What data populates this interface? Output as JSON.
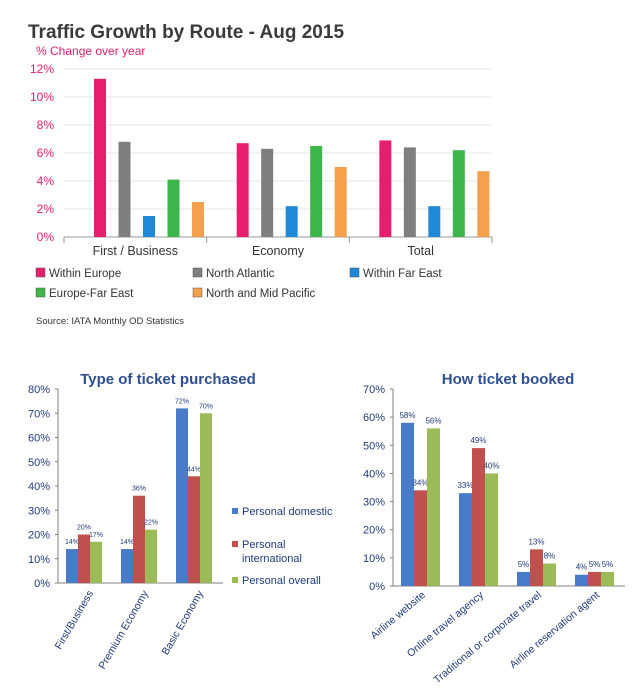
{
  "chart_data": [
    {
      "type": "bar",
      "title": "Traffic Growth by Route - Aug 2015",
      "subtitle": "% Change over year",
      "source": "Source: IATA Monthly OD Statistics",
      "categories": [
        "First / Business",
        "Economy",
        "Total"
      ],
      "yticks": [
        "0%",
        "2%",
        "4%",
        "6%",
        "8%",
        "10%",
        "12%"
      ],
      "ylim": [
        0,
        12
      ],
      "grid": true,
      "legend_position": "bottom",
      "series": [
        {
          "name": "Within Europe",
          "color": "#e61e6e",
          "values": [
            11.3,
            6.7,
            6.9
          ]
        },
        {
          "name": "North Atlantic",
          "color": "#7f7f7f",
          "values": [
            6.8,
            6.3,
            6.4
          ]
        },
        {
          "name": "Within Far East",
          "color": "#1f88d8",
          "values": [
            1.5,
            2.2,
            2.2
          ]
        },
        {
          "name": "Europe-Far East",
          "color": "#3cb54a",
          "values": [
            4.1,
            6.5,
            6.2
          ]
        },
        {
          "name": "North and Mid Pacific",
          "color": "#f5a04c",
          "values": [
            2.5,
            5.0,
            4.7
          ]
        }
      ]
    },
    {
      "type": "bar",
      "title": "Type of ticket purchased",
      "categories": [
        "First/Business",
        "Premium Economy",
        "Basic Economy"
      ],
      "yticks": [
        "0%",
        "10%",
        "20%",
        "30%",
        "40%",
        "50%",
        "60%",
        "70%",
        "80%"
      ],
      "ylim": [
        0,
        80
      ],
      "grid": false,
      "legend_position": "right",
      "series": [
        {
          "name": "Personal domestic",
          "color": "#4a7bc8",
          "values": [
            14,
            14,
            72
          ],
          "labels": [
            "14%",
            "14%",
            "72%"
          ]
        },
        {
          "name": "Personal international",
          "color": "#c0504d",
          "values": [
            20,
            36,
            44
          ],
          "labels": [
            "20%",
            "36%",
            "44%"
          ]
        },
        {
          "name": "Personal overall",
          "color": "#9bbb59",
          "values": [
            17,
            22,
            70
          ],
          "labels": [
            "17%",
            "22%",
            "70%"
          ]
        }
      ]
    },
    {
      "type": "bar",
      "title": "How ticket booked",
      "categories": [
        "Airline website",
        "Online travel agency",
        "Traditional or corporate travel",
        "Airline reservation agent"
      ],
      "yticks": [
        "0%",
        "10%",
        "20%",
        "30%",
        "40%",
        "50%",
        "60%",
        "70%"
      ],
      "ylim": [
        0,
        70
      ],
      "grid": false,
      "series": [
        {
          "values": [
            58,
            33,
            5,
            4
          ],
          "labels": [
            "58%",
            "33%",
            "5%",
            "4%"
          ],
          "color": "#4a7bc8"
        },
        {
          "values": [
            34,
            49,
            13,
            5
          ],
          "labels": [
            "34%",
            "49%",
            "13%",
            "5%"
          ],
          "color": "#c0504d"
        },
        {
          "values": [
            56,
            40,
            8,
            5
          ],
          "labels": [
            "56%",
            "40%",
            "8%",
            "5%"
          ],
          "color": "#9bbb59"
        }
      ]
    }
  ]
}
